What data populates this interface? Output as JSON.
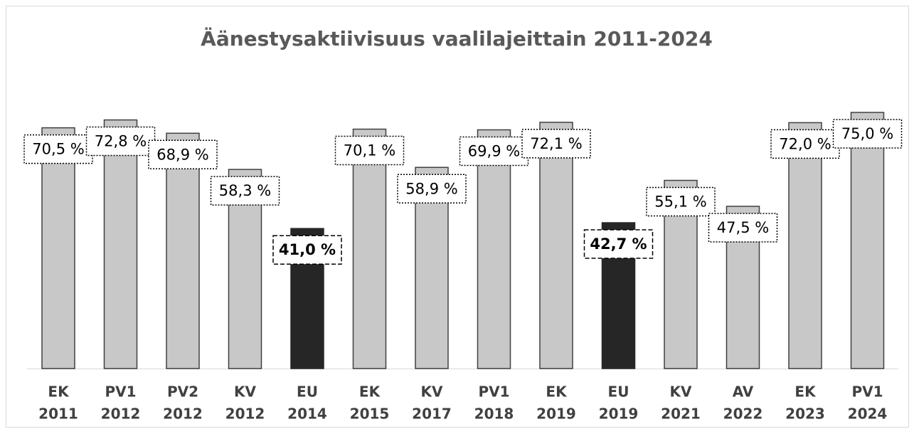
{
  "chart_data": {
    "type": "bar",
    "title": "Äänestysaktiivisuus vaalilajeittain 2011-2024",
    "categories": [
      [
        "EK",
        "2011"
      ],
      [
        "PV1",
        "2012"
      ],
      [
        "PV2",
        "2012"
      ],
      [
        "KV",
        "2012"
      ],
      [
        "EU",
        "2014"
      ],
      [
        "EK",
        "2015"
      ],
      [
        "KV",
        "2017"
      ],
      [
        "PV1",
        "2018"
      ],
      [
        "EK",
        "2019"
      ],
      [
        "EU",
        "2019"
      ],
      [
        "KV",
        "2021"
      ],
      [
        "AV",
        "2022"
      ],
      [
        "EK",
        "2023"
      ],
      [
        "PV1",
        "2024"
      ]
    ],
    "values": [
      70.5,
      72.8,
      68.9,
      58.3,
      41.0,
      70.1,
      58.9,
      69.9,
      72.1,
      42.7,
      55.1,
      47.5,
      72.0,
      75.0
    ],
    "value_labels": [
      "70,5 %",
      "72,8 %",
      "68,9 %",
      "58,3 %",
      "41,0 %",
      "70,1 %",
      "58,9 %",
      "69,9 %",
      "72,1 %",
      "42,7 %",
      "55,1 %",
      "47,5 %",
      "72,0 %",
      "75,0 %"
    ],
    "colors": [
      "#c8c8c8",
      "#c8c8c8",
      "#c8c8c8",
      "#c8c8c8",
      "#262626",
      "#c8c8c8",
      "#c8c8c8",
      "#c8c8c8",
      "#c8c8c8",
      "#262626",
      "#c8c8c8",
      "#c8c8c8",
      "#c8c8c8",
      "#c8c8c8"
    ],
    "emphasis": [
      false,
      false,
      false,
      false,
      true,
      false,
      false,
      false,
      false,
      true,
      false,
      false,
      false,
      false
    ],
    "ylim": [
      0,
      100
    ]
  }
}
